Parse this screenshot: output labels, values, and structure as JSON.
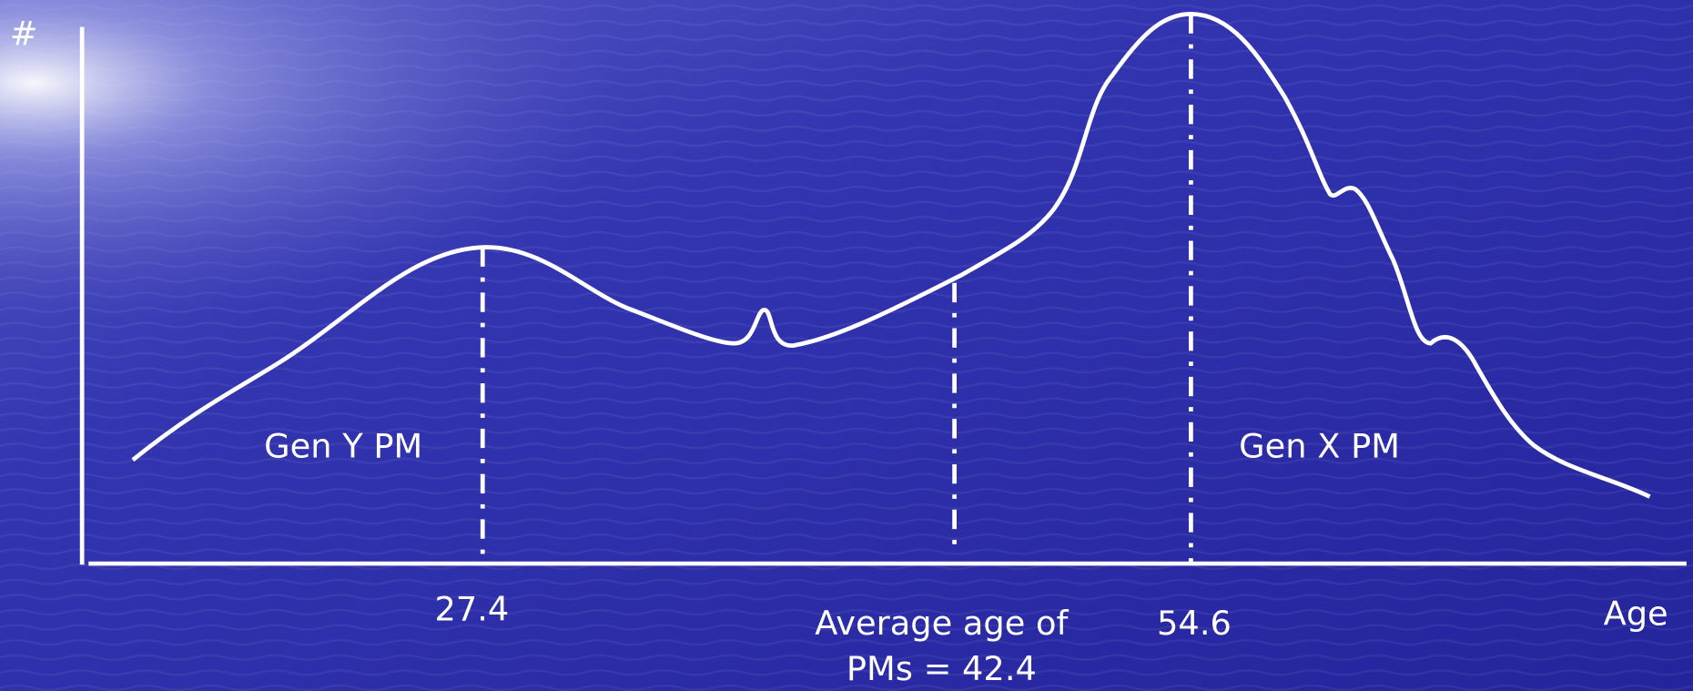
{
  "axis": {
    "y_label": "#",
    "x_label": "Age"
  },
  "annotations": [
    {
      "label": "Gen Y PM"
    },
    {
      "label": "Gen X PM"
    }
  ],
  "markers": [
    {
      "label": "27.4"
    },
    {
      "lines": [
        "Average age of",
        "PMs = 42.4"
      ]
    },
    {
      "label": "54.6"
    }
  ]
}
